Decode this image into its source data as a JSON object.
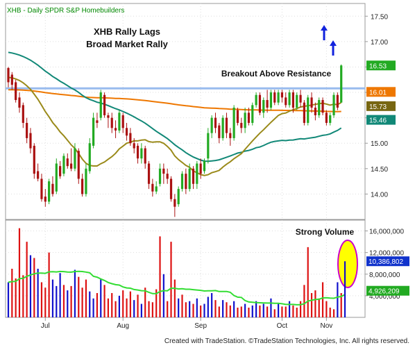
{
  "header": {
    "title": "XHB - Daily  SPDR S&P Homebuilders"
  },
  "footer": {
    "text": "Created with TradeStation. ©TradeStation Technologies, Inc. All rights reserved."
  },
  "annotations": {
    "title_line1": "XHB Rally Lags",
    "title_line2": "Broad Market Rally",
    "breakout": "Breakout Above Resistance",
    "volume": "Strong Volume"
  },
  "colors": {
    "up": "#22aa22",
    "down": "#aa1111",
    "vol_up": "#1111cc",
    "vol_down": "#dd1111",
    "ma20": "#9a8a1a",
    "ma50": "#118877",
    "ma200": "#ee7700",
    "resistance": "#99bbee",
    "volume_ma": "#33dd33",
    "highlight": "#ffff00",
    "ellipse": "#cc00cc",
    "arrow": "#1122dd"
  },
  "chart_data": [
    {
      "type": "candlestick",
      "price_axis": {
        "ylim": [
          13.5,
          17.75
        ],
        "ticks": [
          "17.50",
          "17.00",
          "16.50",
          "16.00",
          "15.50",
          "15.00",
          "14.50",
          "14.00"
        ]
      },
      "x_labels": [
        "Jul",
        "Aug",
        "Sep",
        "Oct",
        "Nov"
      ],
      "last_values": {
        "last_price": "16.53",
        "ma200": "16.01",
        "ma20": "15.73",
        "ma50": "15.46",
        "hidden": "15.50"
      },
      "resistance": 16.08,
      "candles": [
        {
          "o": 16.48,
          "c": 16.2,
          "h": 16.5,
          "l": 16.1
        },
        {
          "o": 16.35,
          "c": 16.15,
          "h": 16.4,
          "l": 16.05
        },
        {
          "o": 16.2,
          "c": 15.85,
          "h": 16.25,
          "l": 15.8
        },
        {
          "o": 15.9,
          "c": 15.7,
          "h": 16.0,
          "l": 15.6
        },
        {
          "o": 15.75,
          "c": 15.4,
          "h": 15.8,
          "l": 15.3
        },
        {
          "o": 15.4,
          "c": 15.1,
          "h": 15.5,
          "l": 15.0
        },
        {
          "o": 15.2,
          "c": 14.9,
          "h": 15.3,
          "l": 14.8
        },
        {
          "o": 14.95,
          "c": 14.4,
          "h": 15.0,
          "l": 14.3
        },
        {
          "o": 14.45,
          "c": 14.3,
          "h": 14.6,
          "l": 14.25
        },
        {
          "o": 14.3,
          "c": 13.9,
          "h": 14.4,
          "l": 13.85
        },
        {
          "o": 13.95,
          "c": 13.85,
          "h": 14.1,
          "l": 13.75
        },
        {
          "o": 13.85,
          "c": 14.25,
          "h": 14.3,
          "l": 13.8
        },
        {
          "o": 14.2,
          "c": 14.0,
          "h": 14.35,
          "l": 13.95
        },
        {
          "o": 14.05,
          "c": 14.6,
          "h": 14.7,
          "l": 14.0
        },
        {
          "o": 14.55,
          "c": 14.35,
          "h": 14.65,
          "l": 14.3
        },
        {
          "o": 14.4,
          "c": 14.75,
          "h": 14.8,
          "l": 14.35
        },
        {
          "o": 14.7,
          "c": 14.55,
          "h": 14.8,
          "l": 14.5
        },
        {
          "o": 14.6,
          "c": 14.5,
          "h": 14.9,
          "l": 14.45
        },
        {
          "o": 14.5,
          "c": 14.9,
          "h": 15.0,
          "l": 14.45
        },
        {
          "o": 14.85,
          "c": 14.3,
          "h": 14.9,
          "l": 14.2
        },
        {
          "o": 14.3,
          "c": 14.0,
          "h": 14.4,
          "l": 13.95
        },
        {
          "o": 14.0,
          "c": 14.5,
          "h": 14.6,
          "l": 13.95
        },
        {
          "o": 14.45,
          "c": 15.0,
          "h": 15.1,
          "l": 14.4
        },
        {
          "o": 14.95,
          "c": 15.5,
          "h": 15.6,
          "l": 14.9
        },
        {
          "o": 15.45,
          "c": 15.4,
          "h": 15.6,
          "l": 15.3
        },
        {
          "o": 15.5,
          "c": 16.0,
          "h": 16.05,
          "l": 15.45
        },
        {
          "o": 15.95,
          "c": 15.55,
          "h": 16.0,
          "l": 15.5
        },
        {
          "o": 15.55,
          "c": 15.5,
          "h": 15.6,
          "l": 15.3
        },
        {
          "o": 15.5,
          "c": 15.3,
          "h": 15.6,
          "l": 15.2
        },
        {
          "o": 15.3,
          "c": 15.25,
          "h": 15.45,
          "l": 15.1
        },
        {
          "o": 15.25,
          "c": 15.6,
          "h": 15.65,
          "l": 15.2
        },
        {
          "o": 15.55,
          "c": 15.3,
          "h": 15.6,
          "l": 15.2
        },
        {
          "o": 15.3,
          "c": 15.15,
          "h": 15.4,
          "l": 15.05
        },
        {
          "o": 15.2,
          "c": 15.0,
          "h": 15.3,
          "l": 14.95
        },
        {
          "o": 15.0,
          "c": 14.9,
          "h": 15.1,
          "l": 14.8
        },
        {
          "o": 14.95,
          "c": 14.7,
          "h": 15.0,
          "l": 14.6
        },
        {
          "o": 14.7,
          "c": 14.9,
          "h": 15.0,
          "l": 14.6
        },
        {
          "o": 14.9,
          "c": 14.6,
          "h": 14.95,
          "l": 14.5
        },
        {
          "o": 14.6,
          "c": 14.2,
          "h": 14.65,
          "l": 14.1
        },
        {
          "o": 14.2,
          "c": 14.05,
          "h": 14.3,
          "l": 13.95
        },
        {
          "o": 14.05,
          "c": 14.15,
          "h": 14.25,
          "l": 14.0
        },
        {
          "o": 14.2,
          "c": 14.5,
          "h": 14.6,
          "l": 14.15
        },
        {
          "o": 14.5,
          "c": 14.4,
          "h": 14.6,
          "l": 14.2
        },
        {
          "o": 14.4,
          "c": 14.3,
          "h": 14.5,
          "l": 14.2
        },
        {
          "o": 14.3,
          "c": 13.9,
          "h": 14.35,
          "l": 13.85
        },
        {
          "o": 13.9,
          "c": 13.75,
          "h": 14.0,
          "l": 13.55
        },
        {
          "o": 13.8,
          "c": 14.1,
          "h": 14.15,
          "l": 13.75
        },
        {
          "o": 14.1,
          "c": 14.4,
          "h": 14.45,
          "l": 14.05
        },
        {
          "o": 14.4,
          "c": 14.1,
          "h": 14.5,
          "l": 14.0
        },
        {
          "o": 14.1,
          "c": 14.5,
          "h": 14.6,
          "l": 14.05
        },
        {
          "o": 14.5,
          "c": 14.2,
          "h": 14.55,
          "l": 14.1
        },
        {
          "o": 14.2,
          "c": 14.6,
          "h": 14.65,
          "l": 14.1
        },
        {
          "o": 14.6,
          "c": 14.4,
          "h": 14.7,
          "l": 14.3
        },
        {
          "o": 14.45,
          "c": 14.65,
          "h": 14.7,
          "l": 14.4
        },
        {
          "o": 14.7,
          "c": 15.2,
          "h": 15.3,
          "l": 14.6
        },
        {
          "o": 15.2,
          "c": 15.5,
          "h": 15.55,
          "l": 15.1
        },
        {
          "o": 15.5,
          "c": 15.3,
          "h": 15.6,
          "l": 15.2
        },
        {
          "o": 15.35,
          "c": 15.1,
          "h": 15.4,
          "l": 15.0
        },
        {
          "o": 15.1,
          "c": 15.5,
          "h": 15.55,
          "l": 15.05
        },
        {
          "o": 15.5,
          "c": 15.2,
          "h": 15.6,
          "l": 15.1
        },
        {
          "o": 15.2,
          "c": 15.1,
          "h": 15.3,
          "l": 14.95
        },
        {
          "o": 15.1,
          "c": 15.7,
          "h": 15.75,
          "l": 15.05
        },
        {
          "o": 15.65,
          "c": 15.4,
          "h": 15.7,
          "l": 15.35
        },
        {
          "o": 15.4,
          "c": 15.3,
          "h": 15.5,
          "l": 15.2
        },
        {
          "o": 15.3,
          "c": 15.6,
          "h": 15.7,
          "l": 15.2
        },
        {
          "o": 15.6,
          "c": 15.4,
          "h": 15.7,
          "l": 15.35
        },
        {
          "o": 15.4,
          "c": 15.75,
          "h": 15.8,
          "l": 15.35
        },
        {
          "o": 15.75,
          "c": 15.95,
          "h": 16.0,
          "l": 15.7
        },
        {
          "o": 15.95,
          "c": 15.6,
          "h": 16.0,
          "l": 15.55
        },
        {
          "o": 15.6,
          "c": 15.85,
          "h": 15.9,
          "l": 15.5
        },
        {
          "o": 15.85,
          "c": 15.7,
          "h": 16.05,
          "l": 15.6
        },
        {
          "o": 15.7,
          "c": 16.0,
          "h": 16.05,
          "l": 15.65
        },
        {
          "o": 16.0,
          "c": 15.8,
          "h": 16.05,
          "l": 15.75
        },
        {
          "o": 15.8,
          "c": 16.0,
          "h": 16.05,
          "l": 15.75
        },
        {
          "o": 16.0,
          "c": 15.9,
          "h": 16.05,
          "l": 15.8
        },
        {
          "o": 15.9,
          "c": 15.75,
          "h": 16.0,
          "l": 15.7
        },
        {
          "o": 15.75,
          "c": 16.0,
          "h": 16.05,
          "l": 15.7
        },
        {
          "o": 16.0,
          "c": 15.7,
          "h": 16.05,
          "l": 15.6
        },
        {
          "o": 15.7,
          "c": 15.95,
          "h": 16.0,
          "l": 15.65
        },
        {
          "o": 15.95,
          "c": 15.8,
          "h": 16.05,
          "l": 15.7
        },
        {
          "o": 15.8,
          "c": 15.4,
          "h": 15.85,
          "l": 15.35
        },
        {
          "o": 15.4,
          "c": 15.9,
          "h": 15.95,
          "l": 15.35
        },
        {
          "o": 15.9,
          "c": 15.7,
          "h": 16.0,
          "l": 15.6
        },
        {
          "o": 15.7,
          "c": 15.55,
          "h": 15.8,
          "l": 15.45
        },
        {
          "o": 15.55,
          "c": 15.85,
          "h": 15.9,
          "l": 15.5
        },
        {
          "o": 15.85,
          "c": 15.6,
          "h": 15.9,
          "l": 15.55
        },
        {
          "o": 15.6,
          "c": 15.4,
          "h": 15.65,
          "l": 15.35
        },
        {
          "o": 15.4,
          "c": 15.55,
          "h": 15.6,
          "l": 15.35
        },
        {
          "o": 15.55,
          "c": 15.95,
          "h": 16.0,
          "l": 15.5
        },
        {
          "o": 15.95,
          "c": 15.7,
          "h": 16.0,
          "l": 15.65
        },
        {
          "o": 15.8,
          "c": 16.53,
          "h": 16.55,
          "l": 15.8
        }
      ]
    },
    {
      "type": "bar",
      "volume_axis": {
        "ylim": [
          0,
          18000000
        ],
        "ticks": [
          "16,000,000",
          "12,000,000",
          "8,000,000",
          "4,000,000"
        ]
      },
      "last_values": {
        "volume": "10,386,802",
        "volume_ma": "4,926,209"
      },
      "volumes": [
        {
          "v": 6.5,
          "d": "up"
        },
        {
          "v": 9.0,
          "d": "down"
        },
        {
          "v": 7.2,
          "d": "down"
        },
        {
          "v": 16.5,
          "d": "down"
        },
        {
          "v": 7.8,
          "d": "down"
        },
        {
          "v": 14.0,
          "d": "down"
        },
        {
          "v": 11.5,
          "d": "up"
        },
        {
          "v": 11.0,
          "d": "down"
        },
        {
          "v": 9.0,
          "d": "up"
        },
        {
          "v": 6.5,
          "d": "down"
        },
        {
          "v": 5.5,
          "d": "down"
        },
        {
          "v": 12.0,
          "d": "down"
        },
        {
          "v": 7.0,
          "d": "up"
        },
        {
          "v": 5.8,
          "d": "up"
        },
        {
          "v": 8.2,
          "d": "up"
        },
        {
          "v": 6.0,
          "d": "down"
        },
        {
          "v": 5.0,
          "d": "up"
        },
        {
          "v": 5.8,
          "d": "down"
        },
        {
          "v": 8.8,
          "d": "up"
        },
        {
          "v": 7.5,
          "d": "down"
        },
        {
          "v": 5.5,
          "d": "down"
        },
        {
          "v": 7.0,
          "d": "down"
        },
        {
          "v": 4.8,
          "d": "up"
        },
        {
          "v": 3.5,
          "d": "up"
        },
        {
          "v": 4.5,
          "d": "down"
        },
        {
          "v": 7.2,
          "d": "up"
        },
        {
          "v": 6.0,
          "d": "down"
        },
        {
          "v": 3.5,
          "d": "down"
        },
        {
          "v": 4.5,
          "d": "down"
        },
        {
          "v": 3.0,
          "d": "down"
        },
        {
          "v": 4.0,
          "d": "up"
        },
        {
          "v": 5.0,
          "d": "down"
        },
        {
          "v": 3.5,
          "d": "down"
        },
        {
          "v": 4.8,
          "d": "down"
        },
        {
          "v": 3.2,
          "d": "up"
        },
        {
          "v": 4.2,
          "d": "down"
        },
        {
          "v": 2.5,
          "d": "up"
        },
        {
          "v": 5.5,
          "d": "down"
        },
        {
          "v": 3.0,
          "d": "down"
        },
        {
          "v": 2.8,
          "d": "down"
        },
        {
          "v": 5.2,
          "d": "down"
        },
        {
          "v": 15.0,
          "d": "down"
        },
        {
          "v": 8.0,
          "d": "up"
        },
        {
          "v": 3.0,
          "d": "down"
        },
        {
          "v": 14.0,
          "d": "down"
        },
        {
          "v": 7.0,
          "d": "down"
        },
        {
          "v": 3.5,
          "d": "up"
        },
        {
          "v": 4.2,
          "d": "down"
        },
        {
          "v": 2.8,
          "d": "down"
        },
        {
          "v": 3.0,
          "d": "up"
        },
        {
          "v": 2.5,
          "d": "down"
        },
        {
          "v": 3.5,
          "d": "up"
        },
        {
          "v": 2.2,
          "d": "down"
        },
        {
          "v": 2.5,
          "d": "up"
        },
        {
          "v": 3.8,
          "d": "up"
        },
        {
          "v": 4.5,
          "d": "up"
        },
        {
          "v": 3.2,
          "d": "down"
        },
        {
          "v": 2.0,
          "d": "down"
        },
        {
          "v": 3.2,
          "d": "up"
        },
        {
          "v": 2.8,
          "d": "down"
        },
        {
          "v": 2.2,
          "d": "down"
        },
        {
          "v": 3.0,
          "d": "up"
        },
        {
          "v": 1.8,
          "d": "down"
        },
        {
          "v": 2.0,
          "d": "down"
        },
        {
          "v": 2.5,
          "d": "up"
        },
        {
          "v": 1.8,
          "d": "down"
        },
        {
          "v": 2.2,
          "d": "up"
        },
        {
          "v": 3.0,
          "d": "up"
        },
        {
          "v": 2.2,
          "d": "down"
        },
        {
          "v": 2.5,
          "d": "up"
        },
        {
          "v": 2.0,
          "d": "down"
        },
        {
          "v": 3.5,
          "d": "up"
        },
        {
          "v": 1.5,
          "d": "down"
        },
        {
          "v": 2.5,
          "d": "up"
        },
        {
          "v": 2.0,
          "d": "down"
        },
        {
          "v": 2.0,
          "d": "down"
        },
        {
          "v": 3.0,
          "d": "up"
        },
        {
          "v": 2.2,
          "d": "down"
        },
        {
          "v": 1.8,
          "d": "down"
        },
        {
          "v": 3.0,
          "d": "down"
        },
        {
          "v": 6.0,
          "d": "down"
        },
        {
          "v": 13.0,
          "d": "down"
        },
        {
          "v": 4.5,
          "d": "down"
        },
        {
          "v": 5.0,
          "d": "down"
        },
        {
          "v": 3.5,
          "d": "down"
        },
        {
          "v": 6.5,
          "d": "down"
        },
        {
          "v": 3.0,
          "d": "down"
        },
        {
          "v": 1.8,
          "d": "down"
        },
        {
          "v": 1.5,
          "d": "down"
        },
        {
          "v": 6.5,
          "d": "up"
        },
        {
          "v": 4.5,
          "d": "down"
        },
        {
          "v": 10.386802,
          "d": "up"
        }
      ]
    }
  ]
}
